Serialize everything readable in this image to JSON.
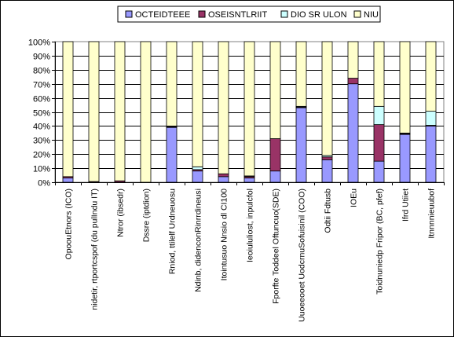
{
  "chart_data": {
    "type": "bar",
    "stacked": true,
    "percent": true,
    "ylim": [
      0,
      100
    ],
    "yticks": [
      "0%",
      "10%",
      "20%",
      "30%",
      "40%",
      "50%",
      "60%",
      "70%",
      "80%",
      "90%",
      "100%"
    ],
    "grid": true,
    "legend_position": "top",
    "categories": [
      "OpoouEtnors (ICO)",
      "nidetir, rtportcspof (du pulIndu IT)",
      "Ntror (ibsedr)",
      "Dssre (iptdion)",
      "Rniod, ttilelf Urdneuosu",
      "Ndinb, didenconRinrrdineusi",
      "Itointusuo Nnsio dl CI100",
      "Ieoiululiost, inpulcfol",
      "Fporfte Toddeel Oftuncuo(SDE)",
      "Uuoeeooet UodcrnuSofuisinil (COO)",
      "Odtii Fdtusb",
      "IOEu",
      "Toidnuniedp Fripor (BC, pfef)",
      "Ifrd Utiiet",
      "Itnnnnieuubof"
    ],
    "series": [
      {
        "name": "OCTEIDTEEE",
        "color": "#9999ff",
        "values": [
          3,
          0,
          0,
          0,
          39,
          8,
          4,
          3,
          8,
          53,
          16,
          70,
          15,
          34,
          40
        ]
      },
      {
        "name": "OSEISNTLRIIT",
        "color": "#993366",
        "values": [
          1,
          0.5,
          1,
          0,
          0.5,
          1,
          2,
          1,
          23,
          0.5,
          2,
          4,
          26,
          0.5,
          0.5
        ]
      },
      {
        "name": "DIO SR ULON",
        "color": "#ccffff",
        "values": [
          0,
          0,
          0,
          0,
          0.5,
          2,
          0,
          0.5,
          0,
          0.5,
          1,
          0,
          13,
          0.5,
          10
        ]
      },
      {
        "name": "NIU",
        "color": "#ffffcc",
        "values": [
          96,
          99.5,
          99,
          100,
          60,
          89,
          94,
          95.5,
          69,
          46,
          81,
          26,
          46,
          65,
          49.5
        ]
      }
    ]
  }
}
